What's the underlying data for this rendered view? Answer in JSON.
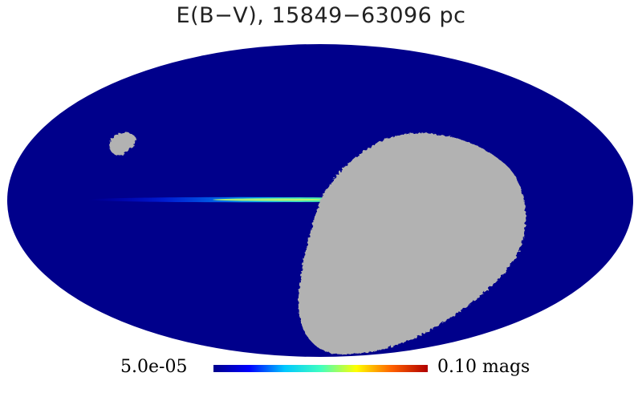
{
  "title": "E(B−V), 15849−63096 pc",
  "colorbar": {
    "min_label": "5.0e-05",
    "max_label": "0.10 mags",
    "colormap": [
      "#00008b",
      "#0000ff",
      "#00c8ff",
      "#40ffc0",
      "#ffff00",
      "#ff6000",
      "#b00000"
    ]
  },
  "map": {
    "projection": "mollweide",
    "background_value_color": "#00008b",
    "masked_color": "#b2b2b2"
  }
}
